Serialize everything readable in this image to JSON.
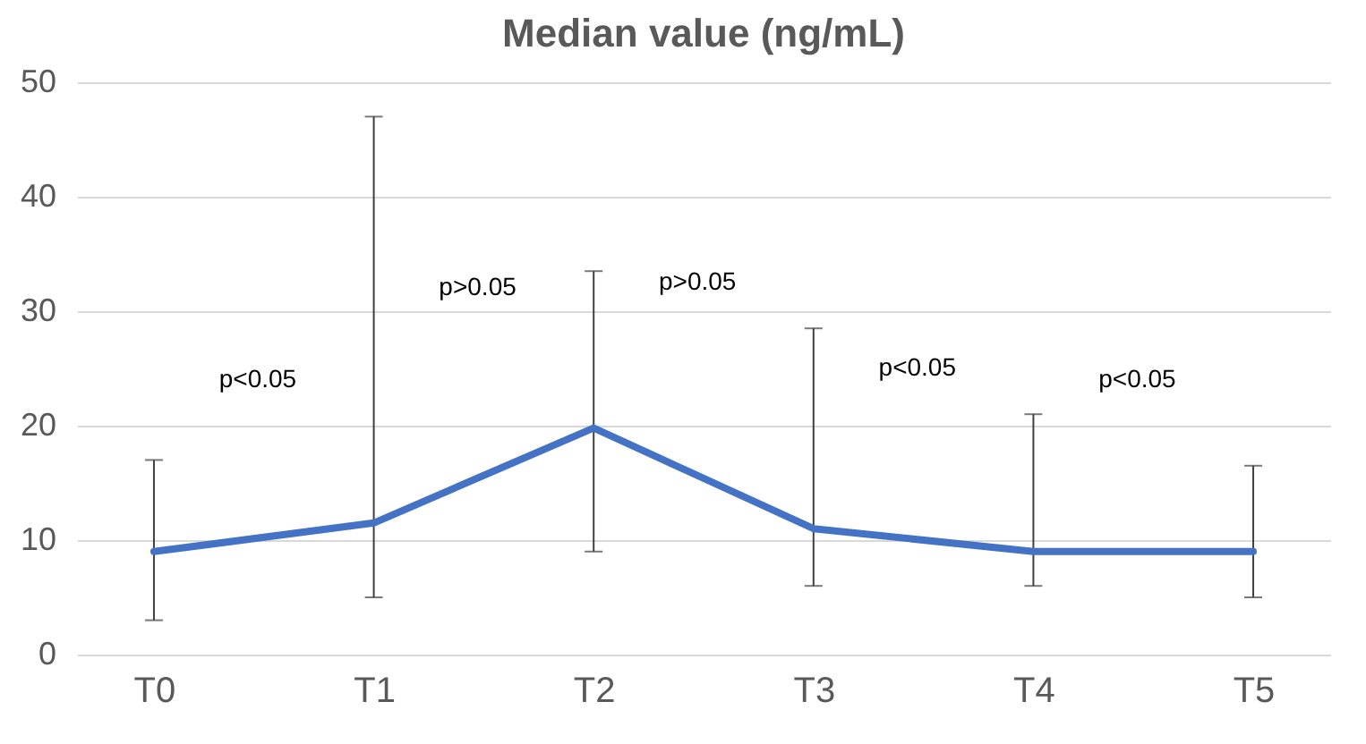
{
  "chart_data": {
    "type": "line",
    "title": "Median value (ng/mL)",
    "categories": [
      "T0",
      "T1",
      "T2",
      "T3",
      "T4",
      "T5"
    ],
    "series": [
      {
        "color": "#4472c4",
        "values": [
          9,
          11.5,
          19.8,
          11,
          9,
          9
        ],
        "errors": [
          [
            3,
            17
          ],
          [
            5,
            47
          ],
          [
            9,
            33.5
          ],
          [
            6,
            28.5
          ],
          [
            6,
            21
          ],
          [
            5,
            16.5
          ]
        ]
      }
    ],
    "ylim": [
      0,
      50
    ],
    "yticks": [
      0,
      10,
      20,
      30,
      40,
      50
    ],
    "grid": "y",
    "marker": "none",
    "line_style": "solid",
    "annotations": [
      "p<0.05",
      "p>0.05",
      "p>0.05",
      "p<0.05",
      "p<0.05"
    ]
  }
}
